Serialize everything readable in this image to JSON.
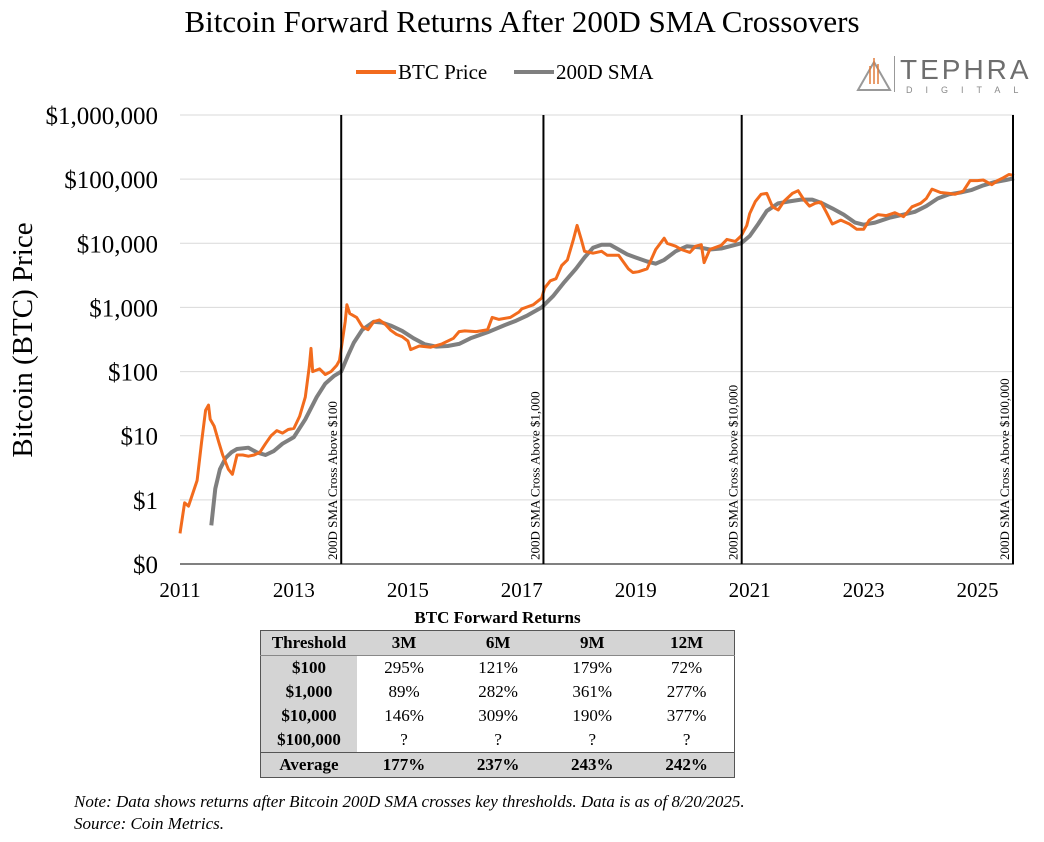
{
  "title": "Bitcoin Forward Returns After 200D SMA Crossovers",
  "logo": {
    "word": "TEPHRA",
    "sub": "DIGITAL"
  },
  "colors": {
    "btc": "#F26B1D",
    "sma": "#7F7F7F",
    "grid": "#d9d9d9",
    "line": "#000000"
  },
  "chart_data": {
    "type": "line",
    "scale": "log",
    "ylabel": "Bitcoin (BTC) Price",
    "xlabel": "",
    "ylim": [
      0.1,
      1000000
    ],
    "xlim": [
      2011.0,
      2025.64
    ],
    "y_ticks": [
      {
        "value": 0.1,
        "label": "$0"
      },
      {
        "value": 1,
        "label": "$1"
      },
      {
        "value": 10,
        "label": "$10"
      },
      {
        "value": 100,
        "label": "$100"
      },
      {
        "value": 1000,
        "label": "$1,000"
      },
      {
        "value": 10000,
        "label": "$10,000"
      },
      {
        "value": 100000,
        "label": "$100,000"
      },
      {
        "value": 1000000,
        "label": "$1,000,000"
      }
    ],
    "x_ticks": [
      {
        "value": 2011,
        "label": "2011"
      },
      {
        "value": 2013,
        "label": "2013"
      },
      {
        "value": 2015,
        "label": "2015"
      },
      {
        "value": 2017,
        "label": "2017"
      },
      {
        "value": 2019,
        "label": "2019"
      },
      {
        "value": 2021,
        "label": "2021"
      },
      {
        "value": 2023,
        "label": "2023"
      },
      {
        "value": 2025,
        "label": "2025"
      }
    ],
    "series": [
      {
        "name": "BTC Price",
        "points": [
          [
            2011.0,
            0.3
          ],
          [
            2011.08,
            0.9
          ],
          [
            2011.15,
            0.8
          ],
          [
            2011.3,
            2.0
          ],
          [
            2011.38,
            8
          ],
          [
            2011.45,
            25
          ],
          [
            2011.5,
            30
          ],
          [
            2011.53,
            18
          ],
          [
            2011.6,
            14
          ],
          [
            2011.68,
            8
          ],
          [
            2011.75,
            5
          ],
          [
            2011.85,
            3
          ],
          [
            2011.92,
            2.5
          ],
          [
            2012.0,
            5
          ],
          [
            2012.1,
            5
          ],
          [
            2012.2,
            4.8
          ],
          [
            2012.3,
            5.0
          ],
          [
            2012.4,
            5.5
          ],
          [
            2012.5,
            7.5
          ],
          [
            2012.6,
            10
          ],
          [
            2012.7,
            12
          ],
          [
            2012.8,
            11
          ],
          [
            2012.9,
            12.5
          ],
          [
            2013.0,
            13
          ],
          [
            2013.1,
            20
          ],
          [
            2013.2,
            40
          ],
          [
            2013.27,
            120
          ],
          [
            2013.3,
            230
          ],
          [
            2013.33,
            100
          ],
          [
            2013.45,
            110
          ],
          [
            2013.55,
            90
          ],
          [
            2013.65,
            100
          ],
          [
            2013.75,
            125
          ],
          [
            2013.8,
            150
          ],
          [
            2013.9,
            600
          ],
          [
            2013.93,
            1100
          ],
          [
            2013.98,
            800
          ],
          [
            2014.1,
            700
          ],
          [
            2014.2,
            500
          ],
          [
            2014.3,
            450
          ],
          [
            2014.4,
            600
          ],
          [
            2014.5,
            640
          ],
          [
            2014.6,
            550
          ],
          [
            2014.7,
            440
          ],
          [
            2014.8,
            380
          ],
          [
            2014.9,
            350
          ],
          [
            2015.0,
            300
          ],
          [
            2015.05,
            220
          ],
          [
            2015.2,
            250
          ],
          [
            2015.4,
            240
          ],
          [
            2015.6,
            270
          ],
          [
            2015.8,
            330
          ],
          [
            2015.9,
            420
          ],
          [
            2016.0,
            430
          ],
          [
            2016.2,
            420
          ],
          [
            2016.4,
            450
          ],
          [
            2016.48,
            700
          ],
          [
            2016.6,
            650
          ],
          [
            2016.8,
            700
          ],
          [
            2016.95,
            850
          ],
          [
            2017.0,
            950
          ],
          [
            2017.2,
            1100
          ],
          [
            2017.35,
            1400
          ],
          [
            2017.4,
            2000
          ],
          [
            2017.5,
            2600
          ],
          [
            2017.6,
            2800
          ],
          [
            2017.7,
            4500
          ],
          [
            2017.8,
            5500
          ],
          [
            2017.9,
            11000
          ],
          [
            2017.97,
            19000
          ],
          [
            2018.05,
            11000
          ],
          [
            2018.1,
            7500
          ],
          [
            2018.25,
            7000
          ],
          [
            2018.4,
            7500
          ],
          [
            2018.5,
            6500
          ],
          [
            2018.7,
            6500
          ],
          [
            2018.87,
            4000
          ],
          [
            2018.95,
            3500
          ],
          [
            2019.05,
            3600
          ],
          [
            2019.2,
            4000
          ],
          [
            2019.35,
            8000
          ],
          [
            2019.5,
            12000
          ],
          [
            2019.55,
            10000
          ],
          [
            2019.7,
            9000
          ],
          [
            2019.8,
            8000
          ],
          [
            2019.95,
            7200
          ],
          [
            2020.05,
            9000
          ],
          [
            2020.15,
            9500
          ],
          [
            2020.2,
            5000
          ],
          [
            2020.3,
            8000
          ],
          [
            2020.5,
            9300
          ],
          [
            2020.6,
            11500
          ],
          [
            2020.75,
            10700
          ],
          [
            2020.85,
            13000
          ],
          [
            2020.95,
            19000
          ],
          [
            2021.0,
            29000
          ],
          [
            2021.1,
            45000
          ],
          [
            2021.2,
            58000
          ],
          [
            2021.3,
            60000
          ],
          [
            2021.4,
            37000
          ],
          [
            2021.5,
            33000
          ],
          [
            2021.6,
            45000
          ],
          [
            2021.75,
            60000
          ],
          [
            2021.85,
            66000
          ],
          [
            2021.95,
            48000
          ],
          [
            2022.05,
            38000
          ],
          [
            2022.15,
            42000
          ],
          [
            2022.25,
            44000
          ],
          [
            2022.35,
            30000
          ],
          [
            2022.45,
            20000
          ],
          [
            2022.6,
            23000
          ],
          [
            2022.75,
            20000
          ],
          [
            2022.88,
            16500
          ],
          [
            2023.0,
            16500
          ],
          [
            2023.1,
            23000
          ],
          [
            2023.25,
            28000
          ],
          [
            2023.4,
            27000
          ],
          [
            2023.55,
            30000
          ],
          [
            2023.7,
            26000
          ],
          [
            2023.85,
            37000
          ],
          [
            2024.0,
            42000
          ],
          [
            2024.1,
            50000
          ],
          [
            2024.2,
            70000
          ],
          [
            2024.35,
            62000
          ],
          [
            2024.5,
            60000
          ],
          [
            2024.6,
            58000
          ],
          [
            2024.75,
            65000
          ],
          [
            2024.87,
            95000
          ],
          [
            2025.0,
            95000
          ],
          [
            2025.1,
            97000
          ],
          [
            2025.25,
            82000
          ],
          [
            2025.35,
            95000
          ],
          [
            2025.45,
            105000
          ],
          [
            2025.55,
            118000
          ],
          [
            2025.64,
            114000
          ]
        ]
      },
      {
        "name": "200D SMA",
        "points": [
          [
            2011.55,
            0.4
          ],
          [
            2011.62,
            1.5
          ],
          [
            2011.7,
            3.0
          ],
          [
            2011.8,
            4.5
          ],
          [
            2011.9,
            5.5
          ],
          [
            2012.0,
            6.2
          ],
          [
            2012.2,
            6.5
          ],
          [
            2012.35,
            5.5
          ],
          [
            2012.5,
            5.0
          ],
          [
            2012.65,
            5.8
          ],
          [
            2012.8,
            7.5
          ],
          [
            2013.0,
            9.5
          ],
          [
            2013.2,
            18
          ],
          [
            2013.4,
            40
          ],
          [
            2013.55,
            65
          ],
          [
            2013.7,
            85
          ],
          [
            2013.83,
            100
          ],
          [
            2013.95,
            180
          ],
          [
            2014.05,
            280
          ],
          [
            2014.2,
            450
          ],
          [
            2014.4,
            600
          ],
          [
            2014.55,
            580
          ],
          [
            2014.7,
            520
          ],
          [
            2014.9,
            430
          ],
          [
            2015.1,
            330
          ],
          [
            2015.3,
            265
          ],
          [
            2015.5,
            245
          ],
          [
            2015.7,
            250
          ],
          [
            2015.9,
            270
          ],
          [
            2016.1,
            330
          ],
          [
            2016.4,
            410
          ],
          [
            2016.7,
            530
          ],
          [
            2016.9,
            620
          ],
          [
            2017.1,
            750
          ],
          [
            2017.35,
            1000
          ],
          [
            2017.55,
            1500
          ],
          [
            2017.75,
            2500
          ],
          [
            2017.95,
            4000
          ],
          [
            2018.1,
            6000
          ],
          [
            2018.25,
            8500
          ],
          [
            2018.4,
            9500
          ],
          [
            2018.55,
            9500
          ],
          [
            2018.7,
            8000
          ],
          [
            2018.85,
            6700
          ],
          [
            2019.0,
            6000
          ],
          [
            2019.2,
            5200
          ],
          [
            2019.35,
            4800
          ],
          [
            2019.5,
            5500
          ],
          [
            2019.7,
            7500
          ],
          [
            2019.9,
            9000
          ],
          [
            2020.1,
            8700
          ],
          [
            2020.3,
            8000
          ],
          [
            2020.5,
            8300
          ],
          [
            2020.7,
            9200
          ],
          [
            2020.85,
            10000
          ],
          [
            2021.0,
            13000
          ],
          [
            2021.15,
            20000
          ],
          [
            2021.3,
            32000
          ],
          [
            2021.5,
            42000
          ],
          [
            2021.7,
            45000
          ],
          [
            2021.9,
            48000
          ],
          [
            2022.1,
            48000
          ],
          [
            2022.25,
            43000
          ],
          [
            2022.45,
            35000
          ],
          [
            2022.65,
            28000
          ],
          [
            2022.85,
            21000
          ],
          [
            2023.0,
            19500
          ],
          [
            2023.2,
            21000
          ],
          [
            2023.45,
            25000
          ],
          [
            2023.7,
            28000
          ],
          [
            2023.9,
            31000
          ],
          [
            2024.1,
            38000
          ],
          [
            2024.3,
            50000
          ],
          [
            2024.5,
            58000
          ],
          [
            2024.7,
            62000
          ],
          [
            2024.9,
            68000
          ],
          [
            2025.1,
            80000
          ],
          [
            2025.3,
            90000
          ],
          [
            2025.5,
            97000
          ],
          [
            2025.64,
            103000
          ]
        ]
      }
    ],
    "vlines": [
      {
        "x": 2013.83,
        "label": "200D SMA Cross Above $100"
      },
      {
        "x": 2017.38,
        "label": "200D SMA Cross Above $1,000"
      },
      {
        "x": 2020.86,
        "label": "200D SMA Cross Above $10,000"
      },
      {
        "x": 2025.64,
        "label": "200D SMA Cross Above $100,000"
      }
    ]
  },
  "table": {
    "title": "BTC Forward Returns",
    "headers": [
      "Threshold",
      "3M",
      "6M",
      "9M",
      "12M"
    ],
    "rows": [
      [
        "$100",
        "295%",
        "121%",
        "179%",
        "72%"
      ],
      [
        "$1,000",
        "89%",
        "282%",
        "361%",
        "277%"
      ],
      [
        "$10,000",
        "146%",
        "309%",
        "190%",
        "377%"
      ],
      [
        "$100,000",
        "?",
        "?",
        "?",
        "?"
      ]
    ],
    "average": [
      "Average",
      "177%",
      "237%",
      "243%",
      "242%"
    ]
  },
  "note": {
    "line1": "Note: Data shows returns after Bitcoin 200D SMA crosses key thresholds. Data is as of 8/20/2025.",
    "line2": "Source: Coin Metrics."
  }
}
